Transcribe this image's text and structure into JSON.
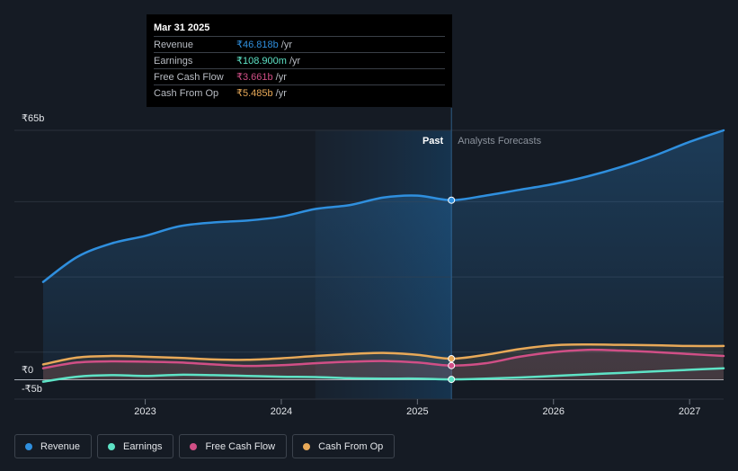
{
  "tooltip": {
    "date": "Mar 31 2025",
    "rows": [
      {
        "label": "Revenue",
        "value": "₹46.818b",
        "unit": "/yr",
        "color": "#2f8fde"
      },
      {
        "label": "Earnings",
        "value": "₹108.900m",
        "unit": "/yr",
        "color": "#5ee3c6"
      },
      {
        "label": "Free Cash Flow",
        "value": "₹3.661b",
        "unit": "/yr",
        "color": "#d04f86"
      },
      {
        "label": "Cash From Op",
        "value": "₹5.485b",
        "unit": "/yr",
        "color": "#e8a958"
      }
    ]
  },
  "legend": [
    {
      "label": "Revenue",
      "color": "#2f8fde"
    },
    {
      "label": "Earnings",
      "color": "#5ee3c6"
    },
    {
      "label": "Free Cash Flow",
      "color": "#d04f86"
    },
    {
      "label": "Cash From Op",
      "color": "#e8a958"
    }
  ],
  "chart_data": {
    "type": "line",
    "y_tick_labels": [
      "₹65b",
      "₹0",
      "-₹5b"
    ],
    "ylim": [
      -5,
      65
    ],
    "xlim": [
      2022.25,
      2027.25
    ],
    "x_ticks": [
      2023,
      2024,
      2025,
      2026,
      2027
    ],
    "x_tick_labels": [
      "2023",
      "2024",
      "2025",
      "2026",
      "2027"
    ],
    "past_label": "Past",
    "forecast_label": "Analysts Forecasts",
    "past_region_start": 2024.25,
    "divider_x": 2025.25,
    "series": [
      {
        "name": "Revenue",
        "color": "#2f8fde",
        "area": true,
        "points": [
          [
            2022.25,
            25.5
          ],
          [
            2022.5,
            32
          ],
          [
            2022.75,
            35.5
          ],
          [
            2023.0,
            37.5
          ],
          [
            2023.25,
            40
          ],
          [
            2023.5,
            41
          ],
          [
            2023.75,
            41.5
          ],
          [
            2024.0,
            42.5
          ],
          [
            2024.25,
            44.5
          ],
          [
            2024.5,
            45.5
          ],
          [
            2024.75,
            47.5
          ],
          [
            2025.0,
            48
          ],
          [
            2025.25,
            46.8
          ],
          [
            2025.5,
            48
          ],
          [
            2025.75,
            49.5
          ],
          [
            2026.0,
            51
          ],
          [
            2026.25,
            53
          ],
          [
            2026.5,
            55.5
          ],
          [
            2026.75,
            58.5
          ],
          [
            2027.0,
            62
          ],
          [
            2027.25,
            65
          ]
        ]
      },
      {
        "name": "Earnings",
        "color": "#5ee3c6",
        "area": false,
        "points": [
          [
            2022.25,
            -0.5
          ],
          [
            2022.5,
            0.8
          ],
          [
            2022.75,
            1.2
          ],
          [
            2023.0,
            1
          ],
          [
            2023.25,
            1.3
          ],
          [
            2023.5,
            1.2
          ],
          [
            2023.75,
            1.0
          ],
          [
            2024.0,
            0.8
          ],
          [
            2024.25,
            0.7
          ],
          [
            2024.5,
            0.4
          ],
          [
            2024.75,
            0.3
          ],
          [
            2025.0,
            0.3
          ],
          [
            2025.25,
            0.1
          ],
          [
            2025.5,
            0.3
          ],
          [
            2025.75,
            0.6
          ],
          [
            2026.0,
            1.0
          ],
          [
            2026.25,
            1.4
          ],
          [
            2026.5,
            1.8
          ],
          [
            2026.75,
            2.2
          ],
          [
            2027.0,
            2.6
          ],
          [
            2027.25,
            3.0
          ]
        ]
      },
      {
        "name": "Free Cash Flow",
        "color": "#d04f86",
        "area": true,
        "points": [
          [
            2022.25,
            3.0
          ],
          [
            2022.5,
            4.5
          ],
          [
            2022.75,
            4.8
          ],
          [
            2023.0,
            4.7
          ],
          [
            2023.25,
            4.5
          ],
          [
            2023.5,
            4.0
          ],
          [
            2023.75,
            3.6
          ],
          [
            2024.0,
            3.8
          ],
          [
            2024.25,
            4.3
          ],
          [
            2024.5,
            4.7
          ],
          [
            2024.75,
            4.9
          ],
          [
            2025.0,
            4.5
          ],
          [
            2025.25,
            3.7
          ],
          [
            2025.5,
            4.3
          ],
          [
            2025.75,
            6.0
          ],
          [
            2026.0,
            7.2
          ],
          [
            2026.25,
            7.8
          ],
          [
            2026.5,
            7.6
          ],
          [
            2026.75,
            7.2
          ],
          [
            2027.0,
            6.7
          ],
          [
            2027.25,
            6.2
          ]
        ]
      },
      {
        "name": "Cash From Op",
        "color": "#e8a958",
        "area": true,
        "points": [
          [
            2022.25,
            4.0
          ],
          [
            2022.5,
            5.8
          ],
          [
            2022.75,
            6.2
          ],
          [
            2023.0,
            6.0
          ],
          [
            2023.25,
            5.7
          ],
          [
            2023.5,
            5.3
          ],
          [
            2023.75,
            5.2
          ],
          [
            2024.0,
            5.6
          ],
          [
            2024.25,
            6.2
          ],
          [
            2024.5,
            6.7
          ],
          [
            2024.75,
            7.0
          ],
          [
            2025.0,
            6.5
          ],
          [
            2025.25,
            5.5
          ],
          [
            2025.5,
            6.5
          ],
          [
            2025.75,
            8.0
          ],
          [
            2026.0,
            9.0
          ],
          [
            2026.25,
            9.2
          ],
          [
            2026.5,
            9.1
          ],
          [
            2026.75,
            9.0
          ],
          [
            2027.0,
            8.8
          ],
          [
            2027.25,
            8.8
          ]
        ]
      }
    ]
  }
}
